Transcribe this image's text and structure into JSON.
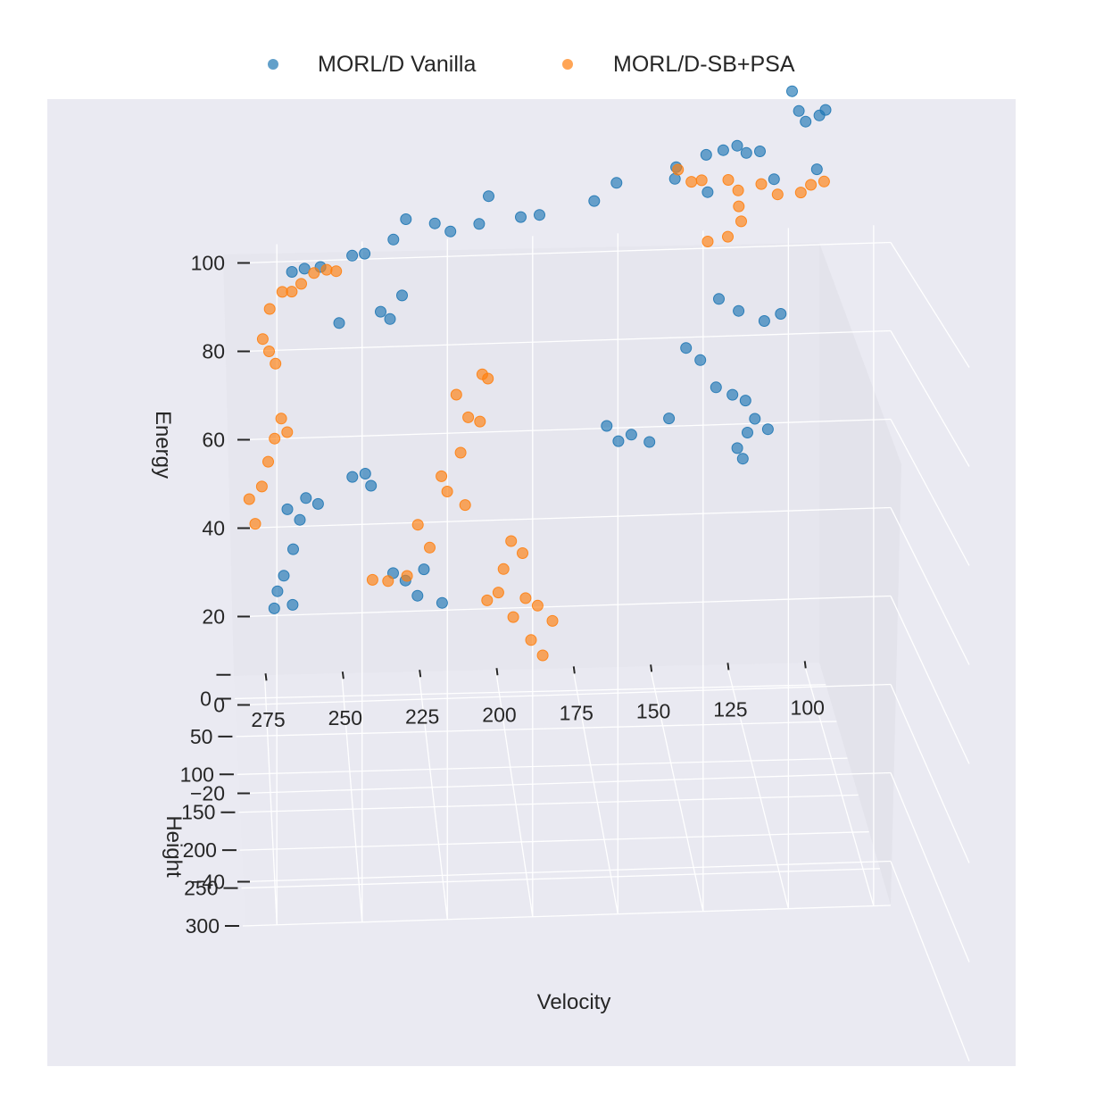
{
  "chart_data": {
    "type": "scatter",
    "projection": "3d",
    "legend_position": "top-center",
    "grid": true,
    "xlabel": "Velocity",
    "ylabel": "Height",
    "zlabel": "Energy",
    "x_ticks": [
      "275",
      "250",
      "225",
      "200",
      "175",
      "150",
      "125",
      "100"
    ],
    "y_ticks": [
      "0",
      "50",
      "100",
      "150",
      "200",
      "250",
      "300"
    ],
    "z_ticks": [
      "100",
      "80",
      "60",
      "40",
      "20",
      "0",
      "−20",
      "−40"
    ],
    "xlim": [
      285,
      95
    ],
    "ylim": [
      -30,
      300
    ],
    "zlim": [
      -50,
      100
    ],
    "colors": {
      "vanilla": "#1f77b4",
      "sbpsa": "#ff7f0e"
    },
    "series": [
      {
        "name": "MORL/D Vanilla",
        "color": "#1f77b4",
        "points": [
          [
            112,
            96,
            96
          ],
          [
            110,
            98,
            92
          ],
          [
            108,
            100,
            90
          ],
          [
            104,
            104,
            92
          ],
          [
            102,
            103,
            93
          ],
          [
            138,
            82,
            80
          ],
          [
            133,
            88,
            82
          ],
          [
            129,
            94,
            84
          ],
          [
            126,
            92,
            82
          ],
          [
            122,
            96,
            83
          ],
          [
            147,
            74,
            76
          ],
          [
            147,
            66,
            72
          ],
          [
            137,
            72,
            70
          ],
          [
            117,
            86,
            75
          ],
          [
            104,
            92,
            78
          ],
          [
            165,
            58,
            70
          ],
          [
            172,
            57,
            66
          ],
          [
            189,
            50,
            62
          ],
          [
            195,
            52,
            62
          ],
          [
            205,
            48,
            66
          ],
          [
            208,
            48,
            60
          ],
          [
            217,
            45,
            58
          ],
          [
            222,
            46,
            60
          ],
          [
            231,
            40,
            60
          ],
          [
            235,
            42,
            56
          ],
          [
            244,
            36,
            52
          ],
          [
            248,
            38,
            52
          ],
          [
            258,
            34,
            49
          ],
          [
            263,
            30,
            48
          ],
          [
            267,
            28,
            47
          ],
          [
            252,
            30,
            36
          ],
          [
            236,
            38,
            38
          ],
          [
            232,
            32,
            42
          ],
          [
            239,
            40,
            40
          ],
          [
            141,
            20,
            27
          ],
          [
            137,
            30,
            26
          ],
          [
            132,
            30,
            20
          ],
          [
            127,
            34,
            19
          ],
          [
            123,
            36,
            18
          ],
          [
            120,
            36,
            14
          ],
          [
            116,
            38,
            12
          ],
          [
            122,
            30,
            10
          ],
          [
            125,
            26,
            6
          ],
          [
            123,
            22,
            3
          ],
          [
            132,
            46,
            42
          ],
          [
            126,
            50,
            40
          ],
          [
            118,
            52,
            38
          ],
          [
            113,
            55,
            40
          ],
          [
            241,
            -8,
            -6
          ],
          [
            247,
            -8,
            -4
          ],
          [
            243,
            0,
            -2
          ],
          [
            258,
            -10,
            -10
          ],
          [
            268,
            -4,
            -10
          ],
          [
            264,
            -2,
            -12
          ],
          [
            262,
            -6,
            -8
          ],
          [
            266,
            -12,
            -20
          ],
          [
            269,
            -14,
            -26
          ],
          [
            271,
            -18,
            -30
          ],
          [
            272,
            -20,
            -34
          ],
          [
            266,
            -24,
            -34
          ],
          [
            224,
            -6,
            -24
          ],
          [
            230,
            -4,
            -26
          ],
          [
            234,
            -2,
            -24
          ],
          [
            226,
            -8,
            -30
          ],
          [
            218,
            -10,
            -32
          ],
          [
            160,
            -34,
            -2
          ],
          [
            164,
            -30,
            2
          ],
          [
            156,
            -30,
            0
          ],
          [
            150,
            -32,
            -2
          ],
          [
            144,
            -26,
            4
          ]
        ]
      },
      {
        "name": "MORL/D-SB+PSA",
        "color": "#ff7f0e",
        "points": [
          [
            142,
            70,
            72
          ],
          [
            146,
            66,
            74
          ],
          [
            139,
            74,
            73
          ],
          [
            131,
            80,
            74
          ],
          [
            128,
            82,
            72
          ],
          [
            121,
            86,
            74
          ],
          [
            116,
            88,
            72
          ],
          [
            109,
            92,
            73
          ],
          [
            106,
            94,
            75
          ],
          [
            102,
            96,
            76
          ],
          [
            127,
            68,
            66
          ],
          [
            126,
            64,
            62
          ],
          [
            130,
            60,
            58
          ],
          [
            136,
            54,
            56
          ],
          [
            253,
            34,
            48
          ],
          [
            256,
            32,
            48
          ],
          [
            260,
            30,
            47
          ],
          [
            264,
            26,
            44
          ],
          [
            267,
            24,
            42
          ],
          [
            270,
            24,
            42
          ],
          [
            274,
            22,
            38
          ],
          [
            272,
            10,
            24
          ],
          [
            274,
            6,
            26
          ],
          [
            276,
            2,
            28
          ],
          [
            270,
            -2,
            10
          ],
          [
            268,
            -8,
            6
          ],
          [
            272,
            -12,
            4
          ],
          [
            274,
            -18,
            -2
          ],
          [
            276,
            -22,
            -8
          ],
          [
            280,
            -30,
            -12
          ],
          [
            278,
            -34,
            -18
          ],
          [
            206,
            18,
            22
          ],
          [
            204,
            12,
            20
          ],
          [
            214,
            8,
            16
          ],
          [
            210,
            2,
            10
          ],
          [
            206,
            -4,
            8
          ],
          [
            212,
            -12,
            0
          ],
          [
            218,
            -18,
            -6
          ],
          [
            216,
            -22,
            -10
          ],
          [
            210,
            -28,
            -14
          ],
          [
            226,
            -4,
            -14
          ],
          [
            222,
            -10,
            -20
          ],
          [
            196,
            -4,
            -18
          ],
          [
            192,
            -12,
            -22
          ],
          [
            198,
            -16,
            -26
          ],
          [
            229,
            -22,
            -28
          ],
          [
            235,
            -28,
            -30
          ],
          [
            240,
            -30,
            -30
          ],
          [
            203,
            -24,
            -34
          ],
          [
            199,
            -34,
            -34
          ],
          [
            194,
            -38,
            -40
          ],
          [
            188,
            -44,
            -46
          ],
          [
            184,
            -48,
            -50
          ],
          [
            190,
            -38,
            -36
          ],
          [
            186,
            -40,
            -38
          ],
          [
            181,
            -44,
            -42
          ]
        ]
      }
    ]
  }
}
